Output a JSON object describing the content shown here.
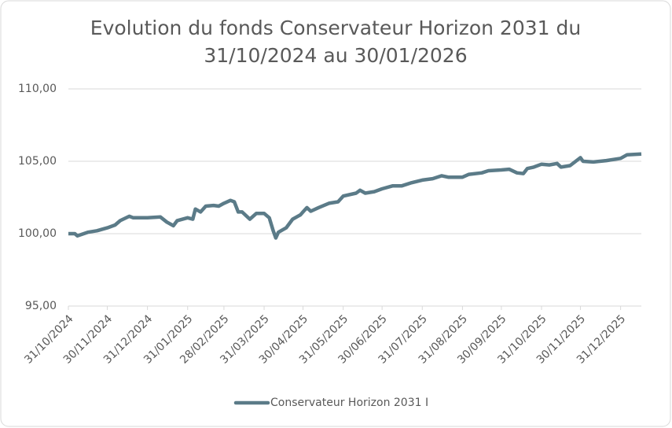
{
  "chart_data": {
    "type": "line",
    "title": "Evolution du fonds Conservateur Horizon 2031 du 31/10/2024 au 30/01/2026",
    "x": [
      "31/10/2024",
      "05/11/2024",
      "07/11/2024",
      "15/11/2024",
      "22/11/2024",
      "30/11/2024",
      "06/12/2024",
      "10/12/2024",
      "17/12/2024",
      "20/12/2024",
      "31/12/2024",
      "10/01/2025",
      "15/01/2025",
      "20/01/2025",
      "23/01/2025",
      "31/01/2025",
      "04/02/2025",
      "06/02/2025",
      "10/02/2025",
      "14/02/2025",
      "20/02/2025",
      "24/02/2025",
      "28/02/2025",
      "05/03/2025",
      "08/03/2025",
      "11/03/2025",
      "14/03/2025",
      "20/03/2025",
      "25/03/2025",
      "31/03/2025",
      "04/04/2025",
      "07/04/2025",
      "09/04/2025",
      "11/04/2025",
      "17/04/2025",
      "22/04/2025",
      "28/04/2025",
      "30/04/2025",
      "03/05/2025",
      "06/05/2025",
      "12/05/2025",
      "20/05/2025",
      "27/05/2025",
      "31/05/2025",
      "10/06/2025",
      "13/06/2025",
      "17/06/2025",
      "24/06/2025",
      "30/06/2025",
      "08/07/2025",
      "15/07/2025",
      "22/07/2025",
      "31/07/2025",
      "08/08/2025",
      "15/08/2025",
      "20/08/2025",
      "31/08/2025",
      "05/09/2025",
      "15/09/2025",
      "20/09/2025",
      "30/09/2025",
      "06/10/2025",
      "12/10/2025",
      "17/10/2025",
      "20/10/2025",
      "25/10/2025",
      "31/10/2025",
      "06/11/2025",
      "12/11/2025",
      "15/11/2025",
      "22/11/2025",
      "30/11/2025",
      "02/12/2025",
      "10/12/2025",
      "20/12/2025",
      "31/12/2025",
      "05/01/2026",
      "16/01/2026"
    ],
    "series": [
      {
        "name": "Conservateur Horizon 2031 I",
        "color": "#5b7b88",
        "values": [
          100.0,
          100.0,
          99.85,
          100.1,
          100.2,
          100.4,
          100.6,
          100.9,
          101.2,
          101.1,
          101.1,
          101.15,
          100.8,
          100.55,
          100.9,
          101.1,
          101.0,
          101.7,
          101.5,
          101.9,
          101.95,
          101.9,
          102.1,
          102.3,
          102.2,
          101.5,
          101.5,
          101.0,
          101.4,
          101.4,
          101.1,
          100.2,
          99.7,
          100.1,
          100.4,
          101.0,
          101.3,
          101.5,
          101.8,
          101.55,
          101.8,
          102.1,
          102.2,
          102.6,
          102.8,
          103.0,
          102.8,
          102.9,
          103.1,
          103.3,
          103.3,
          103.5,
          103.7,
          103.8,
          104.0,
          103.9,
          103.9,
          104.1,
          104.2,
          104.35,
          104.4,
          104.45,
          104.2,
          104.15,
          104.5,
          104.6,
          104.8,
          104.75,
          104.85,
          104.6,
          104.7,
          105.25,
          105.0,
          104.95,
          105.05,
          105.2,
          105.45,
          105.5
        ]
      }
    ],
    "xlim": [
      "31/10/2024",
      "16/01/2026"
    ],
    "xticks": [
      "31/10/2024",
      "30/11/2024",
      "31/12/2024",
      "31/01/2025",
      "28/02/2025",
      "31/03/2025",
      "30/04/2025",
      "31/05/2025",
      "30/06/2025",
      "31/07/2025",
      "31/08/2025",
      "30/09/2025",
      "31/10/2025",
      "30/11/2025",
      "31/12/2025"
    ],
    "ylim": [
      95,
      110
    ],
    "yticks": [
      {
        "value": 95,
        "label": "95,00"
      },
      {
        "value": 100,
        "label": "100,00"
      },
      {
        "value": 105,
        "label": "105,00"
      },
      {
        "value": 110,
        "label": "110,00"
      }
    ],
    "grid": true,
    "legend": "bottom"
  }
}
